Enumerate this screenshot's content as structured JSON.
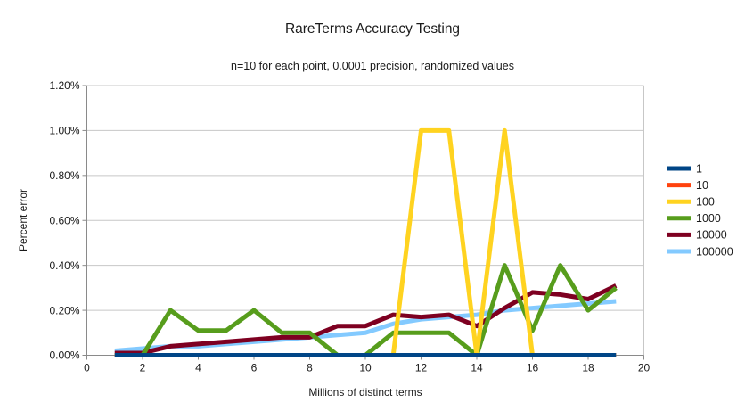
{
  "title": "RareTerms Accuracy Testing",
  "subtitle": "n=10 for each point, 0.0001 precision, randomized values",
  "colors": {
    "background": "#ffffff",
    "grid": "#c7c7c7",
    "axis": "#8a8a8a",
    "text": "#1a1a1a"
  },
  "chart_data": {
    "type": "line",
    "title": "RareTerms Accuracy Testing",
    "subtitle": "n=10 for each point, 0.0001 precision, randomized values",
    "xlabel": "Millions of distinct terms",
    "ylabel": "Percent error",
    "xlim": [
      0,
      20
    ],
    "ylim": [
      0,
      1.2
    ],
    "grid": "horizontal",
    "legend_position": "right",
    "x_ticks": [
      0,
      2,
      4,
      6,
      8,
      10,
      12,
      14,
      16,
      18,
      20
    ],
    "y_ticks": [
      {
        "v": 0.0,
        "label": "0.00%"
      },
      {
        "v": 0.2,
        "label": "0.20%"
      },
      {
        "v": 0.4,
        "label": "0.40%"
      },
      {
        "v": 0.6,
        "label": "0.60%"
      },
      {
        "v": 0.8,
        "label": "0.80%"
      },
      {
        "v": 1.0,
        "label": "1.00%"
      },
      {
        "v": 1.2,
        "label": "1.20%"
      }
    ],
    "x": [
      1,
      2,
      3,
      4,
      5,
      6,
      7,
      8,
      9,
      10,
      11,
      12,
      13,
      14,
      15,
      16,
      17,
      18,
      19
    ],
    "series": [
      {
        "name": "1",
        "color": "#004586",
        "values": [
          0,
          0,
          0,
          0,
          0,
          0,
          0,
          0,
          0,
          0,
          0,
          0,
          0,
          0,
          0,
          0,
          0,
          0,
          0
        ]
      },
      {
        "name": "10",
        "color": "#ff420e",
        "values": [
          0,
          0,
          0,
          0,
          0,
          0,
          0,
          0,
          0,
          0,
          0,
          0,
          0,
          0,
          0,
          0,
          0,
          0,
          0
        ]
      },
      {
        "name": "100",
        "color": "#ffd320",
        "values": [
          0,
          0,
          0,
          0,
          0,
          0,
          0,
          0,
          0,
          0,
          0,
          1.0,
          1.0,
          0,
          1.0,
          0,
          0,
          0,
          0
        ]
      },
      {
        "name": "1000",
        "color": "#579d1c",
        "values": [
          0,
          0,
          0.2,
          0.11,
          0.11,
          0.2,
          0.1,
          0.1,
          0,
          0,
          0.1,
          0.1,
          0.1,
          0,
          0.4,
          0.11,
          0.4,
          0.2,
          0.3
        ]
      },
      {
        "name": "10000",
        "color": "#7e0021",
        "values": [
          0.01,
          0.01,
          0.04,
          0.05,
          0.06,
          0.07,
          0.08,
          0.08,
          0.13,
          0.13,
          0.18,
          0.17,
          0.18,
          0.13,
          0.21,
          0.28,
          0.27,
          0.25,
          0.31
        ]
      },
      {
        "name": "100000",
        "color": "#83caff",
        "values": [
          0.02,
          0.03,
          0.04,
          0.04,
          0.05,
          0.06,
          0.07,
          0.08,
          0.09,
          0.1,
          0.14,
          0.16,
          0.17,
          0.18,
          0.2,
          0.21,
          0.22,
          0.23,
          0.24
        ]
      }
    ]
  }
}
